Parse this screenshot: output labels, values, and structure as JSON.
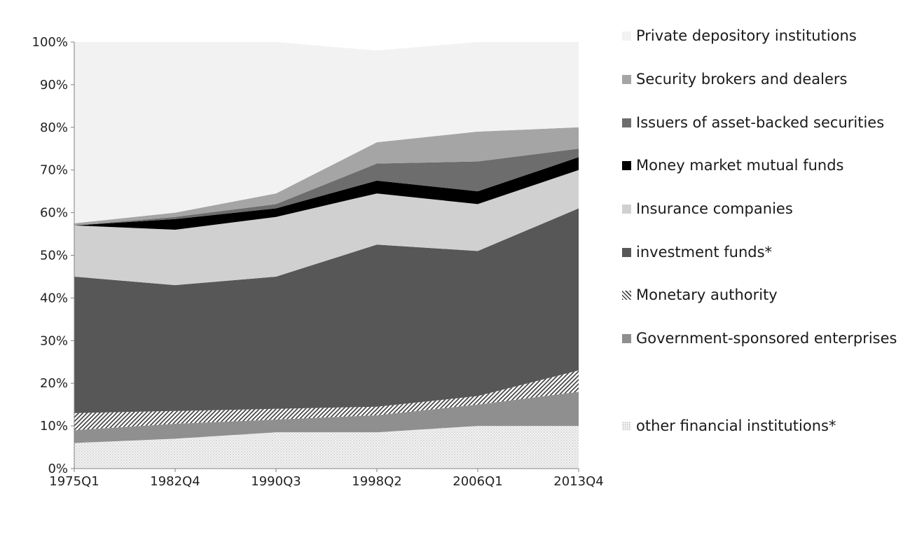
{
  "chart_data": {
    "type": "area",
    "stacked": true,
    "normalized": true,
    "x": [
      "1975Q1",
      "1982Q4",
      "1990Q3",
      "1998Q2",
      "2006Q1",
      "2013Q4"
    ],
    "xtick_labels": [
      "1975Q1",
      "1982Q4",
      "1990Q3",
      "1998Q2",
      "2006Q1",
      "2013Q4"
    ],
    "ytick_labels": [
      "0%",
      "10%",
      "20%",
      "30%",
      "40%",
      "50%",
      "60%",
      "70%",
      "80%",
      "90%",
      "100%"
    ],
    "ylim": [
      0,
      100
    ],
    "grid": false,
    "legend_position": "right",
    "series": [
      {
        "name": "other financial institutions*",
        "fill": "#f3f3f3",
        "pattern": "dots",
        "values": [
          6,
          7,
          8.5,
          8.5,
          10,
          10
        ]
      },
      {
        "name": "Government-sponsored enterprises",
        "fill": "#8f8f8f",
        "pattern": "none",
        "values": [
          3,
          3.5,
          3,
          4,
          5,
          8
        ]
      },
      {
        "name": "Monetary authority",
        "fill": "#ffffff",
        "pattern": "hatch",
        "values": [
          4,
          3,
          2.5,
          2,
          2,
          5
        ]
      },
      {
        "name": "investment funds*",
        "fill": "#575757",
        "pattern": "none",
        "values": [
          32,
          29.5,
          31,
          38,
          34,
          38
        ]
      },
      {
        "name": "Insurance companies",
        "fill": "#d0d0d0",
        "pattern": "none",
        "values": [
          12,
          13,
          14,
          12,
          11,
          9
        ]
      },
      {
        "name": "Money market mutual funds",
        "fill": "#000000",
        "pattern": "none",
        "values": [
          0,
          2.5,
          2,
          3,
          3,
          3
        ]
      },
      {
        "name": "Issuers of asset-backed securities",
        "fill": "#6d6d6d",
        "pattern": "none",
        "values": [
          0,
          0.5,
          1,
          4,
          7,
          2
        ]
      },
      {
        "name": "Security brokers and dealers",
        "fill": "#a5a5a5",
        "pattern": "none",
        "values": [
          0.5,
          1,
          2.5,
          5,
          7,
          5
        ]
      },
      {
        "name": "Private depository institutions",
        "fill": "#f2f2f2",
        "pattern": "none",
        "values": [
          42.5,
          40,
          35.5,
          21.5,
          21,
          20
        ]
      }
    ]
  },
  "legend": {
    "items": [
      {
        "label": "Private depository institutions",
        "color": "#f2f2f2",
        "pattern": "none"
      },
      {
        "label": "Security brokers and dealers",
        "color": "#a5a5a5",
        "pattern": "none"
      },
      {
        "label": "Issuers of asset-backed securities",
        "color": "#6d6d6d",
        "pattern": "none"
      },
      {
        "label": "Money market mutual funds",
        "color": "#000000",
        "pattern": "none"
      },
      {
        "label": "Insurance companies",
        "color": "#d0d0d0",
        "pattern": "none"
      },
      {
        "label": "investment funds*",
        "color": "#575757",
        "pattern": "none"
      },
      {
        "label": "Monetary authority",
        "color": "#ffffff",
        "pattern": "hatch"
      },
      {
        "label": "Government-sponsored enterprises",
        "color": "#8f8f8f",
        "pattern": "none"
      },
      {
        "label": "other financial institutions*",
        "color": "#f3f3f3",
        "pattern": "dots"
      }
    ]
  }
}
